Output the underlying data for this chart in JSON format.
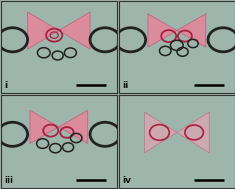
{
  "bg_color": "#9db5aa",
  "grid_color": "#222222",
  "pink_fill": "#e8829a",
  "pink_alpha": 0.82,
  "pink_edge": "#c05070",
  "ring_dark": "#222222",
  "ring_red": "#aa2040",
  "ring_lw_large": 1.8,
  "ring_lw_small": 1.1,
  "scale_bar_color": "#111111",
  "label_color": "#111111",
  "figsize": [
    2.36,
    1.89
  ],
  "dpi": 100,
  "panel_border_lw": 1.0
}
